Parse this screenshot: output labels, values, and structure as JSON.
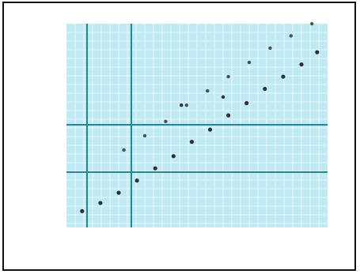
{
  "chart_data": {
    "type": "scatter",
    "title": "",
    "xlabel": "",
    "ylabel": "",
    "x_ticks": [
      "",
      "",
      "",
      "",
      "",
      ""
    ],
    "y_ticks": [
      "",
      "",
      "",
      "",
      "",
      "",
      ""
    ],
    "xlim": [
      0,
      1
    ],
    "ylim": [
      0,
      1
    ],
    "grid": true,
    "background_color": "#bfeaf3",
    "grid_color": "#e8f8fb",
    "major_line_color": "#2b8591",
    "marker_color": "#1d1d1d",
    "series": [
      {
        "name": "",
        "points": [
          [
            0.06,
            0.08
          ],
          [
            0.13,
            0.12
          ],
          [
            0.2,
            0.17
          ],
          [
            0.27,
            0.23
          ],
          [
            0.34,
            0.29
          ],
          [
            0.41,
            0.35
          ],
          [
            0.48,
            0.42
          ],
          [
            0.55,
            0.48
          ],
          [
            0.62,
            0.55
          ],
          [
            0.69,
            0.61
          ],
          [
            0.76,
            0.68
          ],
          [
            0.83,
            0.74
          ],
          [
            0.9,
            0.8
          ],
          [
            0.96,
            0.86
          ]
        ]
      },
      {
        "name": "",
        "points": [
          [
            0.22,
            0.38
          ],
          [
            0.3,
            0.45
          ],
          [
            0.38,
            0.52
          ],
          [
            0.46,
            0.6
          ],
          [
            0.54,
            0.67
          ],
          [
            0.62,
            0.74
          ],
          [
            0.7,
            0.81
          ],
          [
            0.78,
            0.88
          ],
          [
            0.86,
            0.94
          ],
          [
            0.94,
            1.0
          ]
        ]
      },
      {
        "name": "",
        "points": [
          [
            0.44,
            0.6
          ],
          [
            0.6,
            0.64
          ]
        ]
      }
    ]
  }
}
